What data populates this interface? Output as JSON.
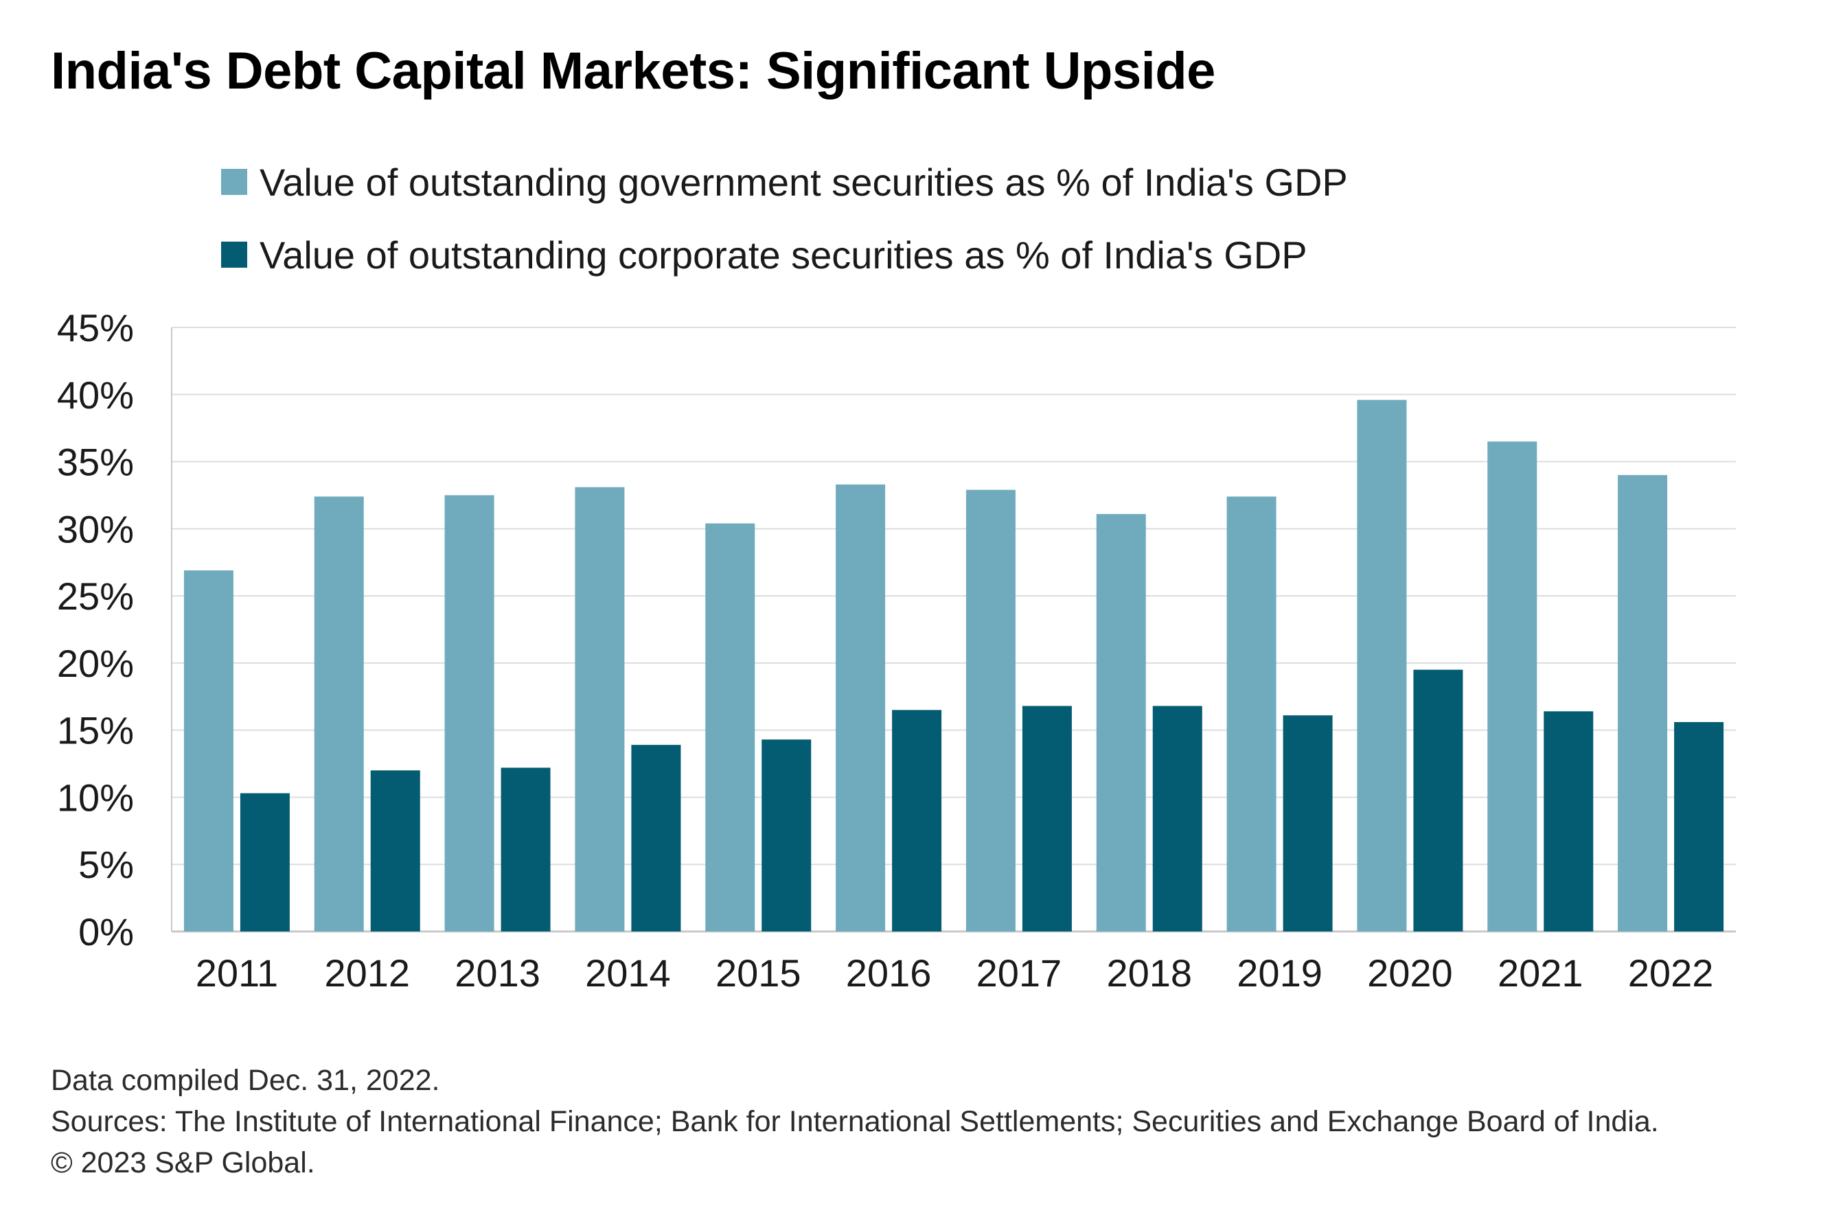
{
  "title": "India's Debt Capital Markets: Significant Upside",
  "colors": {
    "government": "#6fabbd",
    "corporate": "#045c72",
    "grid": "#dddddd",
    "axis": "#c8c8c8"
  },
  "chart_data": {
    "type": "bar",
    "categories": [
      "2011",
      "2012",
      "2013",
      "2014",
      "2015",
      "2016",
      "2017",
      "2018",
      "2019",
      "2020",
      "2021",
      "2022"
    ],
    "series": [
      {
        "name": "Value of outstanding government securities as % of India's GDP",
        "values": [
          26.9,
          32.4,
          32.5,
          33.1,
          30.4,
          33.3,
          32.9,
          31.1,
          32.4,
          39.6,
          36.5,
          34.0
        ]
      },
      {
        "name": "Value of outstanding corporate securities as % of India's GDP",
        "values": [
          10.3,
          12.0,
          12.2,
          13.9,
          14.3,
          16.5,
          16.8,
          16.8,
          16.1,
          19.5,
          16.4,
          15.6
        ]
      }
    ],
    "yticks": [
      "0%",
      "5%",
      "10%",
      "15%",
      "20%",
      "25%",
      "30%",
      "35%",
      "40%",
      "45%"
    ],
    "ylim": [
      0,
      45
    ],
    "grid": true,
    "legend_position": "top"
  },
  "footnotes": {
    "compiled": "Data compiled Dec. 31, 2022.",
    "sources": "Sources: The Institute of International Finance; Bank for International Settlements; Securities and Exchange Board of India.",
    "copyright": "© 2023 S&P Global."
  }
}
